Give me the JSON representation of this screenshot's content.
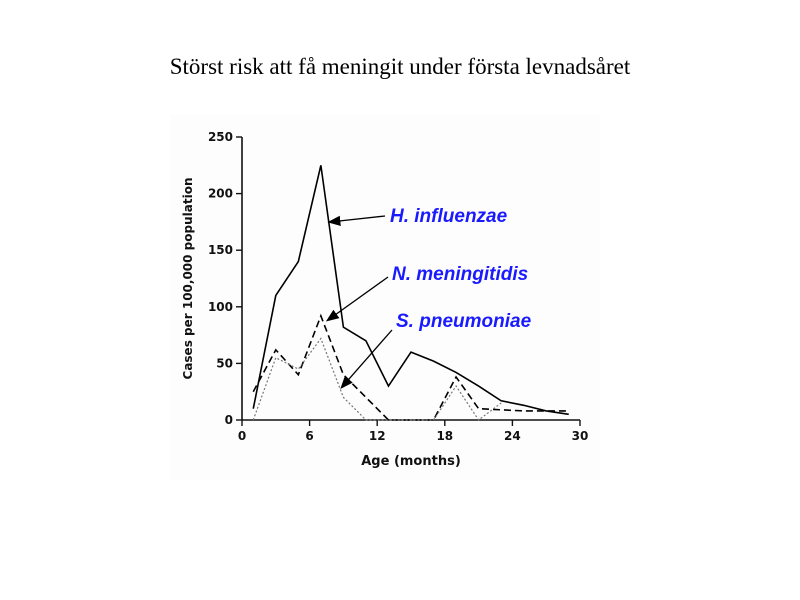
{
  "slide": {
    "title": "Störst risk att få meningit under första levnadsåret"
  },
  "chart_data": {
    "type": "line",
    "xlabel": "Age (months)",
    "ylabel": "Cases per 100,000 population",
    "xlim": [
      0,
      30
    ],
    "ylim": [
      0,
      250
    ],
    "xticks": [
      0,
      6,
      12,
      18,
      24,
      30
    ],
    "yticks": [
      0,
      50,
      100,
      150,
      200,
      250
    ],
    "grid": false,
    "series": [
      {
        "name": "H. influenzae",
        "style": "solid",
        "color": "#000000",
        "x": [
          1,
          3,
          5,
          7,
          9,
          11,
          13,
          15,
          17,
          19,
          21,
          23,
          25,
          27,
          29
        ],
        "y": [
          10,
          110,
          140,
          225,
          82,
          70,
          30,
          60,
          52,
          42,
          30,
          17,
          13,
          8,
          5
        ]
      },
      {
        "name": "N. meningitidis",
        "style": "dashed",
        "color": "#000000",
        "x": [
          1,
          3,
          5,
          7,
          9,
          11,
          13,
          15,
          17,
          19,
          21,
          23,
          25,
          27,
          29
        ],
        "y": [
          25,
          62,
          40,
          92,
          40,
          20,
          0,
          0,
          0,
          38,
          10,
          9,
          8,
          8,
          8
        ]
      },
      {
        "name": "S. pneumoniae",
        "style": "dotted",
        "color": "#777777",
        "x": [
          1,
          3,
          5,
          7,
          9,
          11,
          13,
          15,
          17,
          19,
          21,
          23
        ],
        "y": [
          0,
          55,
          45,
          72,
          20,
          0,
          0,
          0,
          0,
          30,
          0,
          15
        ]
      }
    ]
  }
}
